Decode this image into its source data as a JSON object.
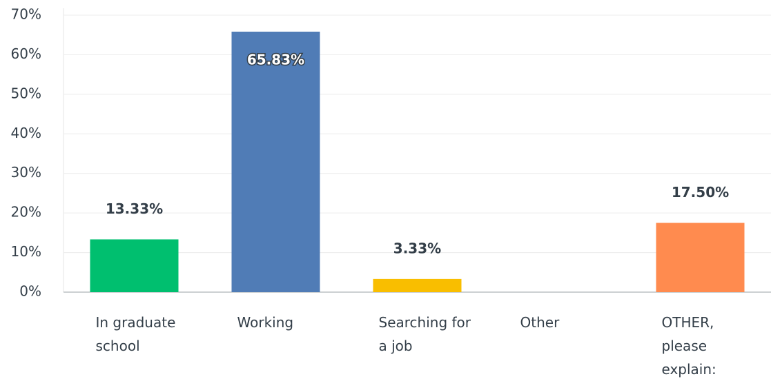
{
  "chart_data": {
    "type": "bar",
    "categories": [
      "In graduate school",
      "Working",
      "Searching for a job",
      "Other",
      "OTHER, please explain:"
    ],
    "values": [
      13.33,
      65.83,
      3.33,
      0,
      17.5
    ],
    "value_labels": [
      "13.33%",
      "65.83%",
      "3.33%",
      null,
      "17.50%"
    ],
    "colors": [
      "#00bf6f",
      "#507cb6",
      "#f9be00",
      null,
      "#ff8b4f"
    ],
    "ylim": [
      0,
      70
    ],
    "yticks": [
      {
        "value": 0,
        "label": "0%"
      },
      {
        "value": 10,
        "label": "10%"
      },
      {
        "value": 20,
        "label": "20%"
      },
      {
        "value": 30,
        "label": "30%"
      },
      {
        "value": 40,
        "label": "40%"
      },
      {
        "value": 50,
        "label": "50%"
      },
      {
        "value": 60,
        "label": "60%"
      },
      {
        "value": 70,
        "label": "70%"
      }
    ],
    "grid": true
  }
}
